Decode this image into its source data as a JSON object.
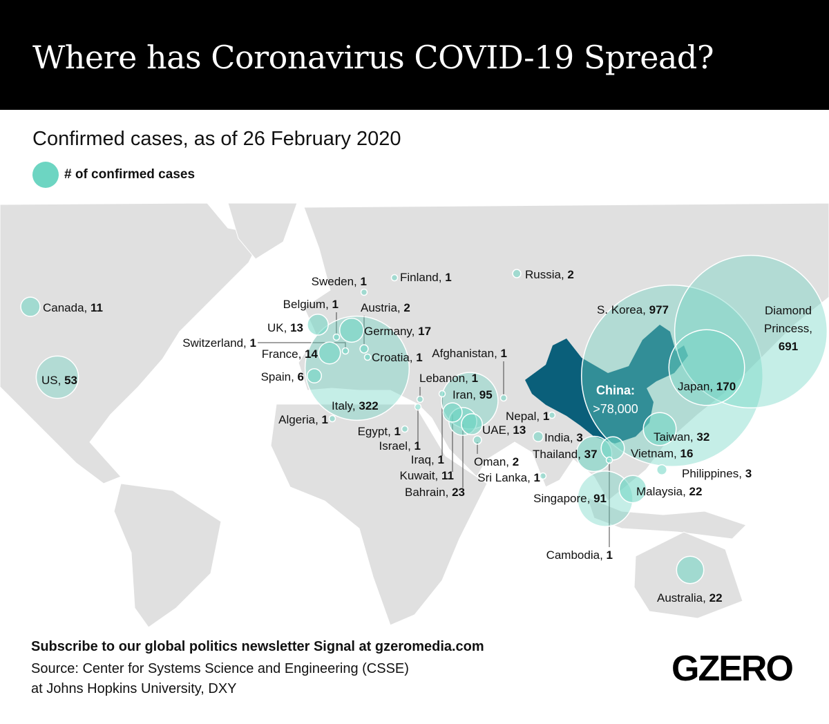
{
  "header": {
    "title": "Where has Coronavirus COVID-19 Spread?"
  },
  "subtitle": "Confirmed cases, as of 26 February 2020",
  "legend": {
    "label": "# of confirmed cases",
    "color": "#6dd5c2"
  },
  "colors": {
    "bubble": "#6dd5c2",
    "china": "#0a5f7a",
    "land": "#e0e0e0",
    "header_bg": "#000000"
  },
  "china": {
    "label": "China:",
    "value": ">78,000"
  },
  "markers": [
    {
      "name": "Canada,",
      "cases": "11"
    },
    {
      "name": "US,",
      "cases": "53"
    },
    {
      "name": "Russia,",
      "cases": "2"
    },
    {
      "name": "Finland,",
      "cases": "1"
    },
    {
      "name": "Sweden,",
      "cases": "1"
    },
    {
      "name": "Belgium,",
      "cases": "1"
    },
    {
      "name": "Austria,",
      "cases": "2"
    },
    {
      "name": "UK,",
      "cases": "13"
    },
    {
      "name": "Germany,",
      "cases": "17"
    },
    {
      "name": "Switzerland,",
      "cases": "1"
    },
    {
      "name": "France,",
      "cases": "14"
    },
    {
      "name": "Croatia,",
      "cases": "1"
    },
    {
      "name": "Spain,",
      "cases": "6"
    },
    {
      "name": "Italy,",
      "cases": "322"
    },
    {
      "name": "Algeria,",
      "cases": "1"
    },
    {
      "name": "Afghanistan,",
      "cases": "1"
    },
    {
      "name": "Lebanon,",
      "cases": "1"
    },
    {
      "name": "Iran,",
      "cases": "95"
    },
    {
      "name": "Nepal,",
      "cases": "1"
    },
    {
      "name": "UAE,",
      "cases": "13"
    },
    {
      "name": "Egypt,",
      "cases": "1"
    },
    {
      "name": "Israel,",
      "cases": "1"
    },
    {
      "name": "India,",
      "cases": "3"
    },
    {
      "name": "Thailand,",
      "cases": "37"
    },
    {
      "name": "Oman,",
      "cases": "2"
    },
    {
      "name": "Iraq,",
      "cases": "1"
    },
    {
      "name": "Kuwait,",
      "cases": "11"
    },
    {
      "name": "Sri Lanka,",
      "cases": "1"
    },
    {
      "name": "Bahrain,",
      "cases": "23"
    },
    {
      "name": "Singapore,",
      "cases": "91"
    },
    {
      "name": "Malaysia,",
      "cases": "22"
    },
    {
      "name": "Philippines,",
      "cases": "3"
    },
    {
      "name": "Cambodia,",
      "cases": "1"
    },
    {
      "name": "Australia,",
      "cases": "22"
    },
    {
      "name": "S. Korea,",
      "cases": "977"
    },
    {
      "name": "Japan,",
      "cases": "170"
    },
    {
      "name": "Taiwan,",
      "cases": "32"
    },
    {
      "name": "Vietnam,",
      "cases": "16"
    },
    {
      "name": "Diamond Princess,",
      "cases": "691"
    }
  ],
  "footer": {
    "subscribe": "Subscribe to our global politics newsletter Signal at gzeromedia.com",
    "source_line1": "Source: Center for Systems Science and Engineering (CSSE)",
    "source_line2": "at Johns Hopkins University, DXY"
  },
  "logo": "GZERO"
}
